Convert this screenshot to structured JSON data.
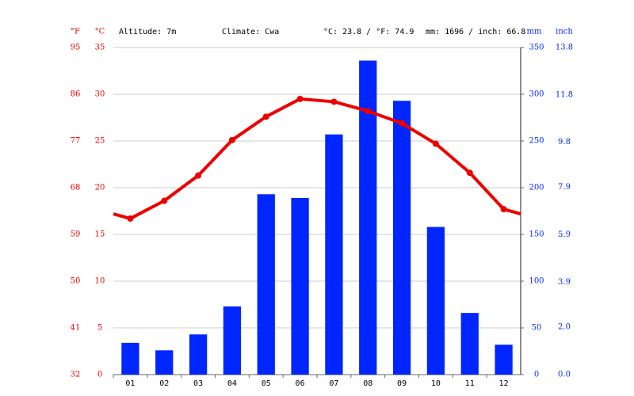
{
  "chart_data": {
    "type": "combo",
    "header": {
      "f_unit": "°F",
      "c_unit": "°C",
      "altitude": "Altitude: 7m",
      "climate": "Climate: Cwa",
      "temp_avg": "°C: 23.8 / °F: 74.9",
      "precip_total": "mm: 1696 / inch: 66.8",
      "mm_unit": "mm",
      "inch_unit": "inch"
    },
    "categories": [
      "01",
      "02",
      "03",
      "04",
      "05",
      "06",
      "07",
      "08",
      "09",
      "10",
      "11",
      "12"
    ],
    "series": [
      {
        "name": "Precipitation (mm)",
        "type": "bar",
        "axis": "y2",
        "color": "#0026ff",
        "values": [
          34,
          26,
          43,
          73,
          193,
          189,
          257,
          336,
          293,
          158,
          66,
          32
        ]
      },
      {
        "name": "Temperature (°C)",
        "type": "line",
        "axis": "y",
        "color": "#ee0000",
        "values": [
          16.7,
          18.6,
          21.3,
          25.1,
          27.6,
          29.5,
          29.2,
          28.2,
          26.9,
          24.7,
          21.6,
          17.7
        ]
      }
    ],
    "ylim": [
      0,
      35
    ],
    "yticks": [
      0,
      5,
      10,
      15,
      20,
      25,
      30,
      35
    ],
    "flim": [
      32,
      95
    ],
    "fticks": [
      32,
      41,
      50,
      59,
      68,
      77,
      86,
      95
    ],
    "y2lim": [
      0,
      350
    ],
    "y2ticks": [
      0,
      50,
      100,
      150,
      200,
      250,
      300,
      350
    ],
    "inchlim": [
      0,
      13.8
    ],
    "inchticks": [
      {
        "value": 0,
        "label": "0.0"
      },
      {
        "value": 2,
        "label": "2.0"
      },
      3.9,
      5.9,
      7.9,
      9.8,
      11.8,
      13.8
    ],
    "grid": true
  }
}
